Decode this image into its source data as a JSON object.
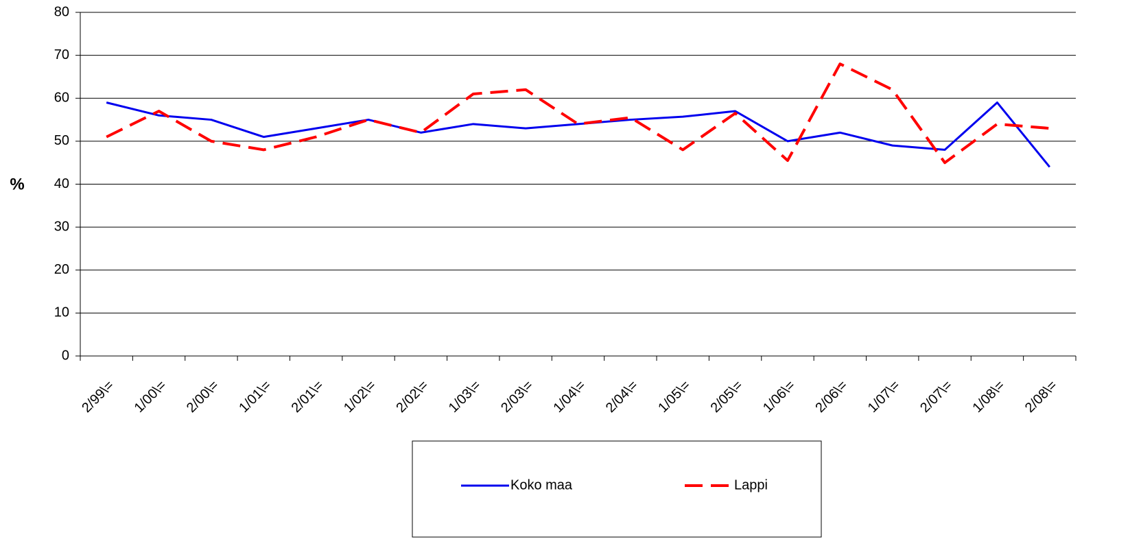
{
  "chart_data": {
    "type": "line",
    "y_label": "%",
    "categories": [
      "2/99\\=",
      "1/00\\=",
      "2/00\\=",
      "1/01\\=",
      "2/01\\=",
      "1/02\\=",
      "2/02\\=",
      "1/03\\=",
      "2/03\\=",
      "1/04\\=",
      "2/04\\=",
      "1/05\\=",
      "2/05\\=",
      "1/06\\=",
      "2/06\\=",
      "1/07\\=",
      "2/07\\=",
      "1/08\\=",
      "2/08\\="
    ],
    "series": [
      {
        "name": "Koko maa",
        "color": "#0000ee",
        "dash": false,
        "values": [
          59,
          56,
          55,
          51,
          53,
          55,
          52,
          54,
          53,
          54,
          55,
          55.7,
          57,
          50,
          52,
          49,
          48,
          59,
          44
        ]
      },
      {
        "name": "Lappi",
        "color": "#ff0000",
        "dash": true,
        "values": [
          51,
          57,
          50,
          48,
          51,
          55,
          52,
          61,
          62,
          54,
          55.5,
          48,
          56.5,
          45.5,
          68,
          62,
          45,
          54,
          53
        ]
      }
    ],
    "ylim": [
      0,
      80
    ],
    "yticks": [
      0,
      10,
      20,
      30,
      40,
      50,
      60,
      70,
      80
    ],
    "grid": true
  }
}
